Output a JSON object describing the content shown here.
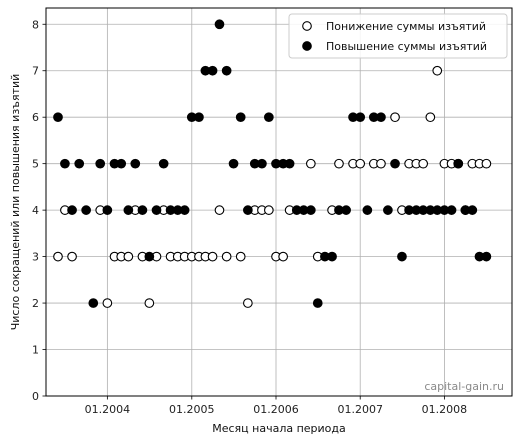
{
  "chart_data": {
    "type": "scatter",
    "title": "",
    "xlabel": "Месяц начала периода",
    "ylabel": "Число сокращений или повышения изъятий",
    "watermark": "capital-gain.ru",
    "xlim": [
      "2003-04-10",
      "2008-10-20"
    ],
    "ylim": [
      0,
      8.35
    ],
    "x_ticks": [
      "2004-01-01",
      "2005-01-01",
      "2006-01-01",
      "2007-01-01",
      "2008-01-01"
    ],
    "x_tick_labels": [
      "01.2004",
      "01.2005",
      "01.2006",
      "01.2007",
      "01.2008"
    ],
    "y_ticks": [
      0,
      1,
      2,
      3,
      4,
      5,
      6,
      7,
      8
    ],
    "y_tick_labels": [
      "0",
      "1",
      "2",
      "3",
      "4",
      "5",
      "6",
      "7",
      "8"
    ],
    "grid": true,
    "legend_position": "top-right",
    "series": [
      {
        "name": "Понижение суммы изъятий",
        "marker": "open-circle",
        "color": "#000000",
        "points": [
          {
            "x": "2003-06-01",
            "y": 3
          },
          {
            "x": "2003-07-01",
            "y": 4
          },
          {
            "x": "2003-08-01",
            "y": 3
          },
          {
            "x": "2003-12-01",
            "y": 4
          },
          {
            "x": "2004-01-01",
            "y": 2
          },
          {
            "x": "2004-02-01",
            "y": 3
          },
          {
            "x": "2004-03-01",
            "y": 3
          },
          {
            "x": "2004-04-01",
            "y": 3
          },
          {
            "x": "2004-05-01",
            "y": 4
          },
          {
            "x": "2004-06-01",
            "y": 3
          },
          {
            "x": "2004-07-01",
            "y": 2
          },
          {
            "x": "2004-08-01",
            "y": 3
          },
          {
            "x": "2004-09-01",
            "y": 4
          },
          {
            "x": "2004-10-01",
            "y": 3
          },
          {
            "x": "2004-11-01",
            "y": 3
          },
          {
            "x": "2004-12-01",
            "y": 3
          },
          {
            "x": "2005-01-01",
            "y": 3
          },
          {
            "x": "2005-02-01",
            "y": 3
          },
          {
            "x": "2005-03-01",
            "y": 3
          },
          {
            "x": "2005-04-01",
            "y": 3
          },
          {
            "x": "2005-05-01",
            "y": 4
          },
          {
            "x": "2005-06-01",
            "y": 3
          },
          {
            "x": "2005-08-01",
            "y": 3
          },
          {
            "x": "2005-09-01",
            "y": 2
          },
          {
            "x": "2005-10-01",
            "y": 4
          },
          {
            "x": "2005-11-01",
            "y": 4
          },
          {
            "x": "2005-12-01",
            "y": 4
          },
          {
            "x": "2006-01-01",
            "y": 3
          },
          {
            "x": "2006-02-01",
            "y": 3
          },
          {
            "x": "2006-03-01",
            "y": 4
          },
          {
            "x": "2006-06-01",
            "y": 5
          },
          {
            "x": "2006-07-01",
            "y": 3
          },
          {
            "x": "2006-09-01",
            "y": 4
          },
          {
            "x": "2006-10-01",
            "y": 5
          },
          {
            "x": "2006-12-01",
            "y": 5
          },
          {
            "x": "2007-01-01",
            "y": 5
          },
          {
            "x": "2007-03-01",
            "y": 5
          },
          {
            "x": "2007-04-01",
            "y": 5
          },
          {
            "x": "2007-06-01",
            "y": 6
          },
          {
            "x": "2007-07-01",
            "y": 4
          },
          {
            "x": "2007-08-01",
            "y": 5
          },
          {
            "x": "2007-09-01",
            "y": 5
          },
          {
            "x": "2007-10-01",
            "y": 5
          },
          {
            "x": "2007-11-01",
            "y": 6
          },
          {
            "x": "2007-12-01",
            "y": 7
          },
          {
            "x": "2008-01-01",
            "y": 5
          },
          {
            "x": "2008-02-01",
            "y": 5
          },
          {
            "x": "2008-03-01",
            "y": 5
          },
          {
            "x": "2008-04-01",
            "y": 4
          },
          {
            "x": "2008-05-01",
            "y": 5
          },
          {
            "x": "2008-06-01",
            "y": 5
          },
          {
            "x": "2008-07-01",
            "y": 5
          }
        ]
      },
      {
        "name": "Повышение суммы изъятий",
        "marker": "filled-circle",
        "color": "#000000",
        "points": [
          {
            "x": "2003-06-01",
            "y": 6
          },
          {
            "x": "2003-07-01",
            "y": 5
          },
          {
            "x": "2003-08-01",
            "y": 4
          },
          {
            "x": "2003-09-01",
            "y": 5
          },
          {
            "x": "2003-10-01",
            "y": 4
          },
          {
            "x": "2003-11-01",
            "y": 2
          },
          {
            "x": "2003-12-01",
            "y": 5
          },
          {
            "x": "2004-01-01",
            "y": 4
          },
          {
            "x": "2004-02-01",
            "y": 5
          },
          {
            "x": "2004-03-01",
            "y": 5
          },
          {
            "x": "2004-04-01",
            "y": 4
          },
          {
            "x": "2004-05-01",
            "y": 5
          },
          {
            "x": "2004-06-01",
            "y": 4
          },
          {
            "x": "2004-07-01",
            "y": 3
          },
          {
            "x": "2004-08-01",
            "y": 4
          },
          {
            "x": "2004-09-01",
            "y": 5
          },
          {
            "x": "2004-10-01",
            "y": 4
          },
          {
            "x": "2004-11-01",
            "y": 4
          },
          {
            "x": "2004-12-01",
            "y": 4
          },
          {
            "x": "2005-01-01",
            "y": 6
          },
          {
            "x": "2005-02-01",
            "y": 6
          },
          {
            "x": "2005-03-01",
            "y": 7
          },
          {
            "x": "2005-04-01",
            "y": 7
          },
          {
            "x": "2005-05-01",
            "y": 8
          },
          {
            "x": "2005-06-01",
            "y": 7
          },
          {
            "x": "2005-07-01",
            "y": 5
          },
          {
            "x": "2005-08-01",
            "y": 6
          },
          {
            "x": "2005-09-01",
            "y": 4
          },
          {
            "x": "2005-10-01",
            "y": 5
          },
          {
            "x": "2005-11-01",
            "y": 5
          },
          {
            "x": "2005-12-01",
            "y": 6
          },
          {
            "x": "2006-01-01",
            "y": 5
          },
          {
            "x": "2006-02-01",
            "y": 5
          },
          {
            "x": "2006-03-01",
            "y": 5
          },
          {
            "x": "2006-04-01",
            "y": 4
          },
          {
            "x": "2006-05-01",
            "y": 4
          },
          {
            "x": "2006-06-01",
            "y": 4
          },
          {
            "x": "2006-07-01",
            "y": 2
          },
          {
            "x": "2006-08-01",
            "y": 3
          },
          {
            "x": "2006-09-01",
            "y": 3
          },
          {
            "x": "2006-10-01",
            "y": 4
          },
          {
            "x": "2006-11-01",
            "y": 4
          },
          {
            "x": "2006-12-01",
            "y": 6
          },
          {
            "x": "2007-01-01",
            "y": 6
          },
          {
            "x": "2007-02-01",
            "y": 4
          },
          {
            "x": "2007-03-01",
            "y": 6
          },
          {
            "x": "2007-04-01",
            "y": 6
          },
          {
            "x": "2007-05-01",
            "y": 4
          },
          {
            "x": "2007-06-01",
            "y": 5
          },
          {
            "x": "2007-07-01",
            "y": 3
          },
          {
            "x": "2007-08-01",
            "y": 4
          },
          {
            "x": "2007-09-01",
            "y": 4
          },
          {
            "x": "2007-10-01",
            "y": 4
          },
          {
            "x": "2007-11-01",
            "y": 4
          },
          {
            "x": "2007-12-01",
            "y": 4
          },
          {
            "x": "2008-01-01",
            "y": 4
          },
          {
            "x": "2008-02-01",
            "y": 4
          },
          {
            "x": "2008-03-01",
            "y": 5
          },
          {
            "x": "2008-04-01",
            "y": 4
          },
          {
            "x": "2008-05-01",
            "y": 4
          },
          {
            "x": "2008-06-01",
            "y": 3
          },
          {
            "x": "2008-07-01",
            "y": 3
          }
        ]
      }
    ]
  }
}
